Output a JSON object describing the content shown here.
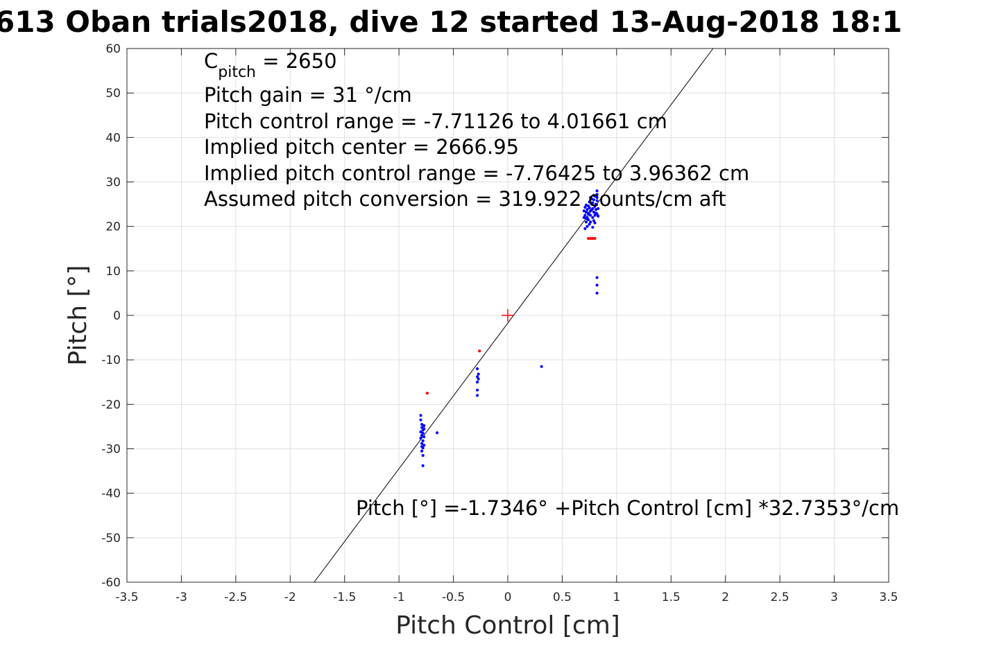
{
  "chart_data": {
    "type": "scatter",
    "title": "613 Oban trials2018, dive 12 started 13-Aug-2018 18:1",
    "xlabel": "Pitch Control [cm]",
    "ylabel": "Pitch [°]",
    "xlim": [
      -3.5,
      3.5
    ],
    "ylim": [
      -60,
      60
    ],
    "xticks": [
      -3.5,
      -3,
      -2.5,
      -2,
      -1.5,
      -1,
      -0.5,
      0,
      0.5,
      1,
      1.5,
      2,
      2.5,
      3,
      3.5
    ],
    "xtick_labels": [
      "-3.5",
      "-3",
      "-2.5",
      "-2",
      "-1.5",
      "-1",
      "-0.5",
      "0",
      "0.5",
      "1",
      "1.5",
      "2",
      "2.5",
      "3",
      "3.5"
    ],
    "yticks": [
      -60,
      -50,
      -40,
      -30,
      -20,
      -10,
      0,
      10,
      20,
      30,
      40,
      50,
      60
    ],
    "ytick_labels": [
      "-60",
      "-50",
      "-40",
      "-30",
      "-20",
      "-10",
      "0",
      "10",
      "20",
      "30",
      "40",
      "50",
      "60"
    ],
    "grid": true,
    "annotations": {
      "c_pitch_main": "C",
      "c_pitch_sub": "pitch",
      "c_pitch_value": " = 2650",
      "pitch_gain": "Pitch gain = 31 °/cm",
      "pitch_control_range": "Pitch control range = -7.71126 to 4.01661 cm",
      "implied_center": "Implied pitch center = 2666.95",
      "implied_range": "Implied pitch control range = -7.76425 to 3.96362 cm",
      "assumed_conversion": "Assumed pitch conversion = 319.922 counts/cm aft",
      "fit_equation": "Pitch [°] =-1.7346° +Pitch Control [cm] *32.7353°/cm"
    },
    "fit_line": {
      "intercept": -1.7346,
      "slope": 32.7353,
      "color": "#000000"
    },
    "center_marker": {
      "x": 0,
      "y": 0,
      "color": "#ff0000"
    },
    "series": [
      {
        "color": "#0000ff",
        "points": [
          [
            -0.8,
            -22.5
          ],
          [
            -0.8,
            -23.5
          ],
          [
            -0.79,
            -24.5
          ],
          [
            -0.79,
            -25.2
          ],
          [
            -0.78,
            -25.8
          ],
          [
            -0.77,
            -24.8
          ],
          [
            -0.78,
            -26.5
          ],
          [
            -0.79,
            -27.0
          ],
          [
            -0.8,
            -27.6
          ],
          [
            -0.78,
            -28.2
          ],
          [
            -0.79,
            -28.8
          ],
          [
            -0.77,
            -29.2
          ],
          [
            -0.78,
            -29.8
          ],
          [
            -0.79,
            -30.5
          ],
          [
            -0.78,
            -31.5
          ],
          [
            -0.77,
            -25.5
          ],
          [
            -0.8,
            -26.2
          ],
          [
            -0.77,
            -27.3
          ],
          [
            -0.79,
            -29.5
          ],
          [
            -0.78,
            -33.8
          ],
          [
            -0.65,
            -26.4
          ],
          [
            -0.28,
            -12.0
          ],
          [
            -0.27,
            -13.2
          ],
          [
            -0.28,
            -13.8
          ],
          [
            -0.27,
            -14.3
          ],
          [
            -0.28,
            -15.0
          ],
          [
            -0.28,
            -16.8
          ],
          [
            -0.28,
            -18.0
          ],
          [
            0.31,
            -11.5
          ],
          [
            0.82,
            8.5
          ],
          [
            0.82,
            6.8
          ],
          [
            0.82,
            5.0
          ],
          [
            0.71,
            19.5
          ],
          [
            0.72,
            21.0
          ],
          [
            0.73,
            22.0
          ],
          [
            0.71,
            22.5
          ],
          [
            0.74,
            23.0
          ],
          [
            0.76,
            23.5
          ],
          [
            0.78,
            24.0
          ],
          [
            0.8,
            24.5
          ],
          [
            0.81,
            25.0
          ],
          [
            0.82,
            25.8
          ],
          [
            0.82,
            26.5
          ],
          [
            0.82,
            27.2
          ],
          [
            0.82,
            28.0
          ],
          [
            0.79,
            26.0
          ],
          [
            0.77,
            25.0
          ],
          [
            0.75,
            24.2
          ],
          [
            0.73,
            23.8
          ],
          [
            0.72,
            23.2
          ],
          [
            0.74,
            21.5
          ],
          [
            0.76,
            21.0
          ],
          [
            0.78,
            22.0
          ],
          [
            0.8,
            22.5
          ],
          [
            0.81,
            23.0
          ],
          [
            0.83,
            24.0
          ],
          [
            0.83,
            22.3
          ],
          [
            0.7,
            23.5
          ],
          [
            0.71,
            24.3
          ],
          [
            0.72,
            24.8
          ],
          [
            0.75,
            25.5
          ],
          [
            0.77,
            26.2
          ],
          [
            0.79,
            27.0
          ],
          [
            0.8,
            20.8
          ],
          [
            0.73,
            20.0
          ],
          [
            0.75,
            20.5
          ],
          [
            0.78,
            19.8
          ],
          [
            0.74,
            22.8
          ],
          [
            0.76,
            22.5
          ],
          [
            0.79,
            23.2
          ],
          [
            0.81,
            23.8
          ],
          [
            0.78,
            25.3
          ],
          [
            0.76,
            26.5
          ],
          [
            0.72,
            21.8
          ],
          [
            0.8,
            26.8
          ],
          [
            0.77,
            23.7
          ],
          [
            0.74,
            24.6
          ],
          [
            0.79,
            21.3
          ],
          [
            0.82,
            22.8
          ],
          [
            0.7,
            22.0
          ]
        ]
      },
      {
        "color": "#ff0000",
        "points": [
          [
            -0.74,
            -17.5
          ],
          [
            -0.26,
            -8.0
          ],
          [
            0.74,
            17.3
          ],
          [
            0.76,
            17.3
          ],
          [
            0.78,
            17.3
          ],
          [
            0.8,
            17.3
          ]
        ]
      }
    ]
  }
}
